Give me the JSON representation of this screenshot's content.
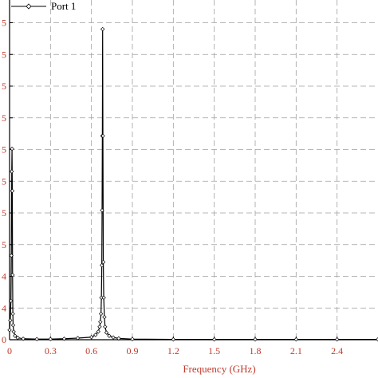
{
  "chart_data": {
    "type": "line",
    "title": "",
    "xlabel": "Frequency (GHz)",
    "ylabel": "",
    "xlim": [
      0,
      2.7
    ],
    "x_ticks": [
      0,
      0.3,
      0.6,
      0.9,
      1.2,
      1.5,
      1.8,
      2.1,
      2.4
    ],
    "x_tick_labels": [
      "0",
      "0.3",
      "0.6",
      "0.9",
      "1.2",
      "1.5",
      "1.8",
      "2.1",
      "2.4"
    ],
    "y_tick_labels": [
      "0",
      "4",
      "4",
      "5",
      "5",
      "5",
      "5",
      "5",
      "5",
      "5",
      "5"
    ],
    "grid": true,
    "legend_position": "top-left",
    "series": [
      {
        "name": "Port 1",
        "color": "#000000",
        "marker": "diamond",
        "x": [
          0.0,
          0.005,
          0.01,
          0.013,
          0.016,
          0.018,
          0.02,
          0.022,
          0.024,
          0.026,
          0.03,
          0.04,
          0.06,
          0.1,
          0.2,
          0.3,
          0.4,
          0.5,
          0.6,
          0.63,
          0.65,
          0.66,
          0.665,
          0.67,
          0.673,
          0.676,
          0.678,
          0.68,
          0.682,
          0.684,
          0.687,
          0.69,
          0.695,
          0.7,
          0.71,
          0.73,
          0.76,
          0.8,
          0.9,
          1.2,
          1.5,
          1.8,
          2.1,
          2.4,
          2.7
        ],
        "y": [
          0.3,
          0.6,
          1.2,
          2.6,
          5.2,
          5.9,
          4.6,
          2.0,
          0.8,
          0.45,
          0.25,
          0.12,
          0.06,
          0.03,
          0.02,
          0.02,
          0.03,
          0.05,
          0.08,
          0.15,
          0.25,
          0.4,
          0.55,
          0.8,
          1.3,
          2.3,
          4.0,
          6.3,
          9.6,
          6.3,
          2.4,
          1.3,
          0.7,
          0.4,
          0.22,
          0.12,
          0.07,
          0.04,
          0.02,
          0.01,
          0.01,
          0.01,
          0.01,
          0.01,
          0.01
        ]
      }
    ]
  }
}
